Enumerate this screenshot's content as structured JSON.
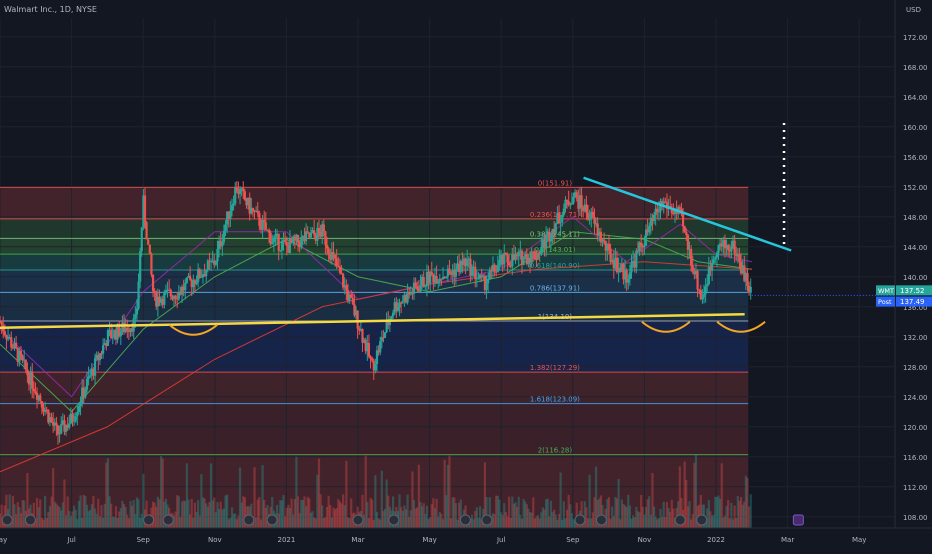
{
  "header": {
    "title": "Walmart Inc., 1D, NYSE",
    "currency": "USD"
  },
  "colors": {
    "background": "#131722",
    "grid": "#1e222d",
    "text": "#b2b5be",
    "price_line": "#2962ff",
    "neckline": "#f5d942",
    "trendline": "#26c6da",
    "cup_arc": "#f5a623",
    "dotted_target": "#ffffff",
    "candle_up": "#26a69a",
    "candle_down": "#ef5350",
    "ma_green": "#4caf50",
    "ma_purple": "#9c27b0",
    "ma_red": "#e53935"
  },
  "chart_data": {
    "type": "candlestick",
    "title": "Walmart Inc., 1D, NYSE",
    "y_axis": {
      "ticks": [
        108,
        112,
        116,
        120,
        124,
        128,
        132,
        136,
        140,
        144,
        148,
        152,
        156,
        160,
        164,
        168,
        172
      ],
      "range": [
        106.5,
        174.5
      ],
      "side": "right"
    },
    "x_axis": {
      "ticks": [
        {
          "label": "May",
          "t": 0
        },
        {
          "label": "Jul",
          "t": 2
        },
        {
          "label": "Sep",
          "t": 4
        },
        {
          "label": "Nov",
          "t": 6
        },
        {
          "label": "2021",
          "t": 8
        },
        {
          "label": "Mar",
          "t": 10
        },
        {
          "label": "May",
          "t": 12
        },
        {
          "label": "Jul",
          "t": 14
        },
        {
          "label": "Sep",
          "t": 16
        },
        {
          "label": "Nov",
          "t": 18
        },
        {
          "label": "2022",
          "t": 20
        },
        {
          "label": "Mar",
          "t": 22
        },
        {
          "label": "May",
          "t": 24
        }
      ],
      "range": [
        0,
        25
      ]
    },
    "price_path": [
      [
        0,
        134
      ],
      [
        1,
        125
      ],
      [
        1.6,
        119
      ],
      [
        2,
        121
      ],
      [
        3,
        132
      ],
      [
        3.8,
        134
      ],
      [
        4,
        150
      ],
      [
        4.3,
        137
      ],
      [
        5,
        138
      ],
      [
        6,
        142
      ],
      [
        6.6,
        152
      ],
      [
        7,
        149
      ],
      [
        7.6,
        145
      ],
      [
        8,
        144
      ],
      [
        9,
        146
      ],
      [
        9.6,
        139
      ],
      [
        10,
        134
      ],
      [
        10.4,
        128
      ],
      [
        11,
        136
      ],
      [
        12,
        140
      ],
      [
        12.6,
        140.5
      ],
      [
        13,
        142
      ],
      [
        13.5,
        139
      ],
      [
        14,
        142
      ],
      [
        15,
        143
      ],
      [
        15.5,
        147
      ],
      [
        16,
        151
      ],
      [
        16.5,
        148
      ],
      [
        17,
        143
      ],
      [
        17.5,
        140
      ],
      [
        18,
        145
      ],
      [
        18.5,
        150
      ],
      [
        19,
        148
      ],
      [
        19.6,
        137
      ],
      [
        20,
        144
      ],
      [
        20.5,
        144
      ],
      [
        21,
        137.5
      ]
    ],
    "moving_averages": [
      {
        "color_key": "ma_green",
        "path": [
          [
            0,
            131
          ],
          [
            2,
            122
          ],
          [
            4,
            133
          ],
          [
            6,
            140
          ],
          [
            8,
            145
          ],
          [
            10,
            140
          ],
          [
            12,
            138
          ],
          [
            14,
            140
          ],
          [
            16,
            146
          ],
          [
            18,
            145
          ],
          [
            19.5,
            142
          ],
          [
            21,
            141
          ]
        ]
      },
      {
        "color_key": "ma_purple",
        "path": [
          [
            0,
            133
          ],
          [
            2,
            124
          ],
          [
            4,
            138
          ],
          [
            6,
            146
          ],
          [
            8,
            146
          ],
          [
            10,
            137
          ],
          [
            12,
            139
          ],
          [
            14,
            141
          ],
          [
            16,
            148
          ],
          [
            17.5,
            142
          ],
          [
            19,
            147
          ],
          [
            20,
            143
          ],
          [
            21,
            142
          ]
        ]
      },
      {
        "color_key": "ma_red",
        "path": [
          [
            0,
            114
          ],
          [
            3,
            120
          ],
          [
            6,
            129
          ],
          [
            9,
            136
          ],
          [
            12,
            139
          ],
          [
            15,
            141
          ],
          [
            18,
            142
          ],
          [
            21,
            141
          ]
        ]
      }
    ],
    "fib_levels": [
      {
        "label": "0(151.91)",
        "price": 151.91,
        "color": "#ef5350"
      },
      {
        "label": "0.236(147.71)",
        "price": 147.71,
        "color": "#ef5350"
      },
      {
        "label": "0.382(145.11)",
        "price": 145.11,
        "color": "#81c784"
      },
      {
        "label": "0.5(143.01)",
        "price": 143.01,
        "color": "#4caf50"
      },
      {
        "label": "0.618(140.90)",
        "price": 140.9,
        "color": "#26a69a"
      },
      {
        "label": "0.786(137.91)",
        "price": 137.91,
        "color": "#64b5f6"
      },
      {
        "label": "1(134.10)",
        "price": 134.1,
        "color": "#b2b5be"
      },
      {
        "label": "1.382(127.29)",
        "price": 127.29,
        "color": "#ef5350"
      },
      {
        "label": "1.618(123.09)",
        "price": 123.09,
        "color": "#42a5f5"
      },
      {
        "label": "2(116.28)",
        "price": 116.28,
        "color": "#4caf50"
      }
    ],
    "fib_zones": [
      {
        "from": 147.71,
        "to": 151.91,
        "color": "rgba(239,83,80,0.22)"
      },
      {
        "from": 145.11,
        "to": 147.71,
        "color": "rgba(76,175,80,0.22)"
      },
      {
        "from": 143.01,
        "to": 145.11,
        "color": "rgba(76,175,80,0.28)"
      },
      {
        "from": 140.9,
        "to": 143.01,
        "color": "rgba(38,166,154,0.25)"
      },
      {
        "from": 137.91,
        "to": 140.9,
        "color": "rgba(66,165,245,0.18)"
      },
      {
        "from": 134.1,
        "to": 137.91,
        "color": "rgba(66,165,245,0.16)"
      },
      {
        "from": 127.29,
        "to": 134.1,
        "color": "rgba(41,98,255,0.18)"
      },
      {
        "from": 123.09,
        "to": 127.29,
        "color": "rgba(239,83,80,0.20)"
      },
      {
        "from": 116.28,
        "to": 123.09,
        "color": "rgba(239,83,80,0.18)"
      },
      {
        "from": 106.5,
        "to": 116.28,
        "color": "rgba(239,83,80,0.22)"
      }
    ],
    "neckline": {
      "from": [
        0,
        133.2
      ],
      "to": [
        20.8,
        135.0
      ]
    },
    "trendline": {
      "from": [
        16.3,
        153.2
      ],
      "to": [
        22.1,
        143.5
      ]
    },
    "target_dotted": {
      "t": 21.9,
      "from": 143.9,
      "to": 160.5
    },
    "cup_arcs": [
      {
        "t": 5.4,
        "price": 133.6
      },
      {
        "t": 18.6,
        "price": 134.0
      },
      {
        "t": 20.7,
        "price": 134.0
      }
    ],
    "last_price": {
      "symbol": "WMT",
      "value": "137.52"
    },
    "post_price": {
      "label": "Post",
      "value": "137.49"
    },
    "earnings_markers": {
      "past_t": [
        0.2,
        0.85,
        4.15,
        4.7,
        6.95,
        7.6,
        10.0,
        11.0,
        13.0,
        13.6,
        16.2,
        16.8,
        19.0,
        19.6
      ],
      "future_t": [
        22.3
      ]
    }
  }
}
